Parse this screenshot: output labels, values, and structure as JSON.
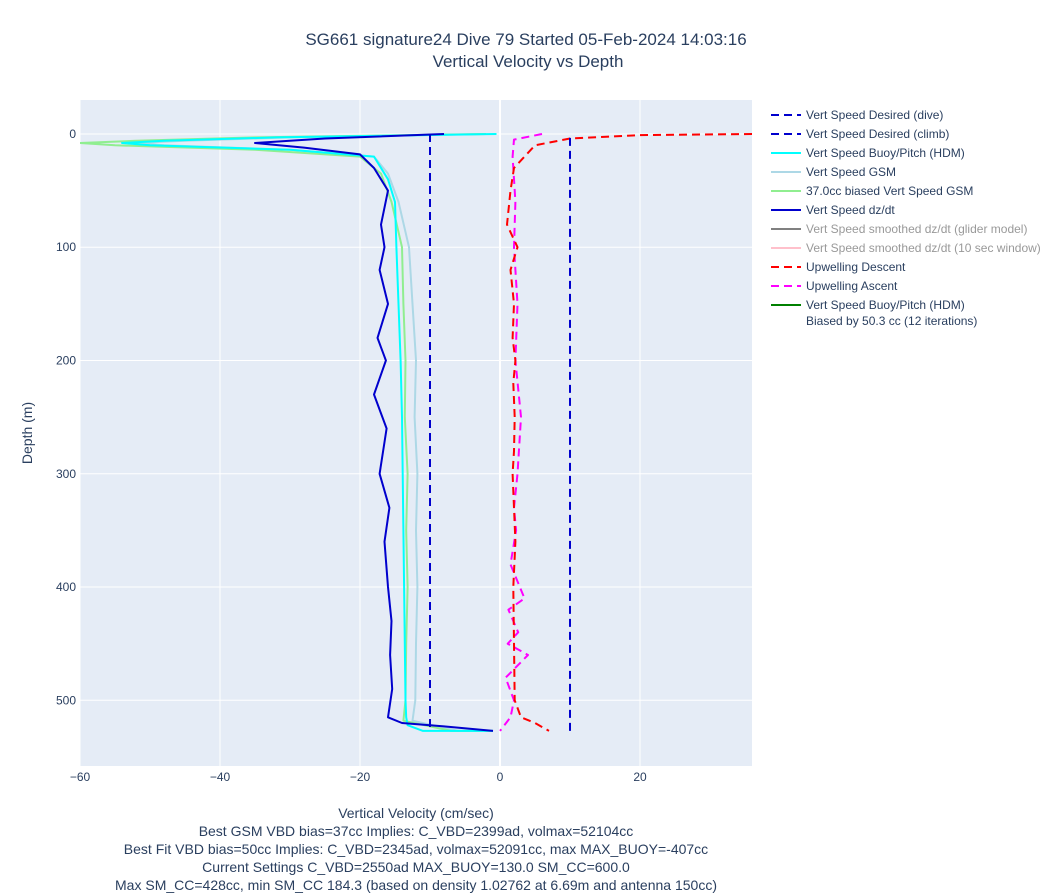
{
  "chart_data": {
    "type": "line",
    "title": "SG661 signature24 Dive 79 Started 05-Feb-2024 14:03:16",
    "subtitle": "Vertical Velocity vs Depth",
    "xlabel": "Vertical Velocity (cm/sec)",
    "ylabel": "Depth (m)",
    "xlim": [
      -60,
      36
    ],
    "ylim": [
      558,
      -30
    ],
    "x_ticks": [
      -60,
      -40,
      -20,
      0,
      20
    ],
    "x_tick_labels": [
      "−60",
      "−40",
      "−20",
      "0",
      "20"
    ],
    "y_ticks": [
      0,
      100,
      200,
      300,
      400,
      500
    ],
    "y_tick_labels": [
      "0",
      "100",
      "200",
      "300",
      "400",
      "500"
    ],
    "grid": true,
    "legend_position": "right",
    "footer_lines": [
      "Best GSM VBD bias=37cc Implies: C_VBD=2399ad, volmax=52104cc",
      "Best Fit VBD bias=50cc Implies: C_VBD=2345ad, volmax=52091cc, max MAX_BUOY=-407cc",
      "Current Settings C_VBD=2550ad MAX_BUOY=130.0 SM_CC=600.0",
      "Max SM_CC=428cc, min SM_CC 184.3 (based on density 1.02762 at 6.69m and antenna 150cc)"
    ],
    "series": [
      {
        "name": "Vert Speed Desired (dive)",
        "color": "#0000cd",
        "dash": "dash",
        "muted": false,
        "x": [
          -10,
          -10
        ],
        "y": [
          0,
          527
        ]
      },
      {
        "name": "Vert Speed Desired (climb)",
        "color": "#0000cd",
        "dash": "dash",
        "muted": false,
        "x": [
          10,
          10
        ],
        "y": [
          527,
          0
        ]
      },
      {
        "name": "Vert Speed Buoy/Pitch (HDM)",
        "color": "#00ffff",
        "dash": "solid",
        "muted": false,
        "x": [
          -0.5,
          -32,
          -48,
          -54,
          -50,
          -30,
          -18,
          -16,
          -15,
          -14.8,
          -14.5,
          -14.2,
          -14,
          -13.9,
          -13.8,
          -13.7,
          -13.6,
          -13.5,
          -13.4,
          -13.2,
          -11,
          -6,
          -1
        ],
        "y": [
          0,
          3,
          6,
          8,
          10,
          14,
          20,
          40,
          60,
          100,
          150,
          200,
          250,
          300,
          350,
          400,
          450,
          500,
          515,
          522,
          527,
          527,
          527
        ]
      },
      {
        "name": "Vert Speed GSM",
        "color": "#add8e6",
        "dash": "solid",
        "muted": false,
        "x": [
          -2,
          -30,
          -45,
          -52,
          -48,
          -30,
          -18,
          -16,
          -14.5,
          -13,
          -12.5,
          -12,
          -12.2,
          -11.8,
          -12,
          -11.8,
          -12,
          -12.1,
          -12.5,
          -6,
          -1
        ],
        "y": [
          0,
          3,
          6,
          8,
          10,
          14,
          20,
          35,
          60,
          100,
          150,
          200,
          250,
          300,
          350,
          400,
          450,
          500,
          518,
          527,
          527
        ]
      },
      {
        "name": "37.0cc biased Vert Speed GSM",
        "color": "#90ee90",
        "dash": "solid",
        "muted": false,
        "x": [
          -2,
          -35,
          -52,
          -60,
          -55,
          -35,
          -20,
          -17,
          -15.5,
          -14,
          -13.8,
          -13.5,
          -13.6,
          -13.2,
          -13.4,
          -13.2,
          -13.4,
          -13.5,
          -13.8,
          -7,
          -1
        ],
        "y": [
          0,
          3,
          6,
          8,
          10,
          14,
          20,
          35,
          60,
          100,
          150,
          200,
          250,
          300,
          350,
          400,
          450,
          500,
          518,
          527,
          527
        ]
      },
      {
        "name": "Vert Speed dz/dt",
        "color": "#0000cd",
        "dash": "solid",
        "muted": false,
        "x": [
          -8,
          -25,
          -35,
          -28,
          -20,
          -18,
          -16,
          -17,
          -16.5,
          -17.2,
          -16,
          -17.5,
          -16.3,
          -18,
          -16.2,
          -17.2,
          -15.8,
          -16.5,
          -16,
          -15.5,
          -15.7,
          -15.4,
          -16,
          -14,
          -8,
          -1
        ],
        "y": [
          0,
          4,
          8,
          12,
          18,
          30,
          50,
          80,
          100,
          120,
          150,
          180,
          200,
          230,
          260,
          300,
          330,
          360,
          400,
          430,
          460,
          490,
          515,
          520,
          523,
          527
        ]
      },
      {
        "name": "Vert Speed smoothed dz/dt (glider model)",
        "color": "#808080",
        "dash": "solid",
        "muted": true,
        "x": [],
        "y": []
      },
      {
        "name": "Vert Speed smoothed dz/dt (10 sec window)",
        "color": "#ffc0cb",
        "dash": "solid",
        "muted": true,
        "x": [],
        "y": []
      },
      {
        "name": "Upwelling Descent",
        "color": "#ff0000",
        "dash": "dash",
        "muted": false,
        "x": [
          36,
          20,
          10,
          5,
          2,
          1.5,
          1,
          2.5,
          1.5,
          2,
          1.8,
          2.2,
          1.9,
          2.1,
          2,
          1.8,
          2,
          2.2,
          1.9,
          2,
          2.1,
          3,
          5,
          7
        ],
        "y": [
          0,
          1,
          4,
          10,
          30,
          50,
          80,
          100,
          120,
          150,
          180,
          200,
          220,
          250,
          280,
          300,
          330,
          360,
          400,
          450,
          500,
          515,
          520,
          527
        ]
      },
      {
        "name": "Upwelling Ascent",
        "color": "#ff00ff",
        "dash": "dash",
        "muted": false,
        "x": [
          6,
          2,
          1.8,
          2.2,
          2,
          2.5,
          2.2,
          3,
          2.5,
          2,
          2.3,
          1.5,
          3.5,
          1.2,
          2.6,
          1.1,
          4,
          0.8,
          2,
          1.5,
          0
        ],
        "y": [
          0,
          5,
          20,
          60,
          100,
          150,
          200,
          250,
          300,
          330,
          350,
          380,
          410,
          420,
          440,
          450,
          460,
          480,
          500,
          515,
          527
        ]
      },
      {
        "name": "Vert Speed Buoy/Pitch (HDM)",
        "name_line2": "Biased by 50.3 cc (12 iterations)",
        "color": "#008000",
        "dash": "solid",
        "muted": false,
        "x": [
          -2,
          -30,
          -44,
          -40,
          -28,
          -18,
          -15.8,
          -14.8,
          -14.5,
          -14.2,
          -14,
          -13.9,
          -13.8,
          -13.7,
          -13.6,
          -13.8,
          -13.5,
          -13.4,
          -14,
          -8,
          -2
        ],
        "y": [
          0,
          3,
          6,
          10,
          14,
          20,
          35,
          60,
          100,
          150,
          200,
          250,
          300,
          350,
          400,
          450,
          500,
          515,
          520,
          525,
          527
        ]
      }
    ]
  }
}
